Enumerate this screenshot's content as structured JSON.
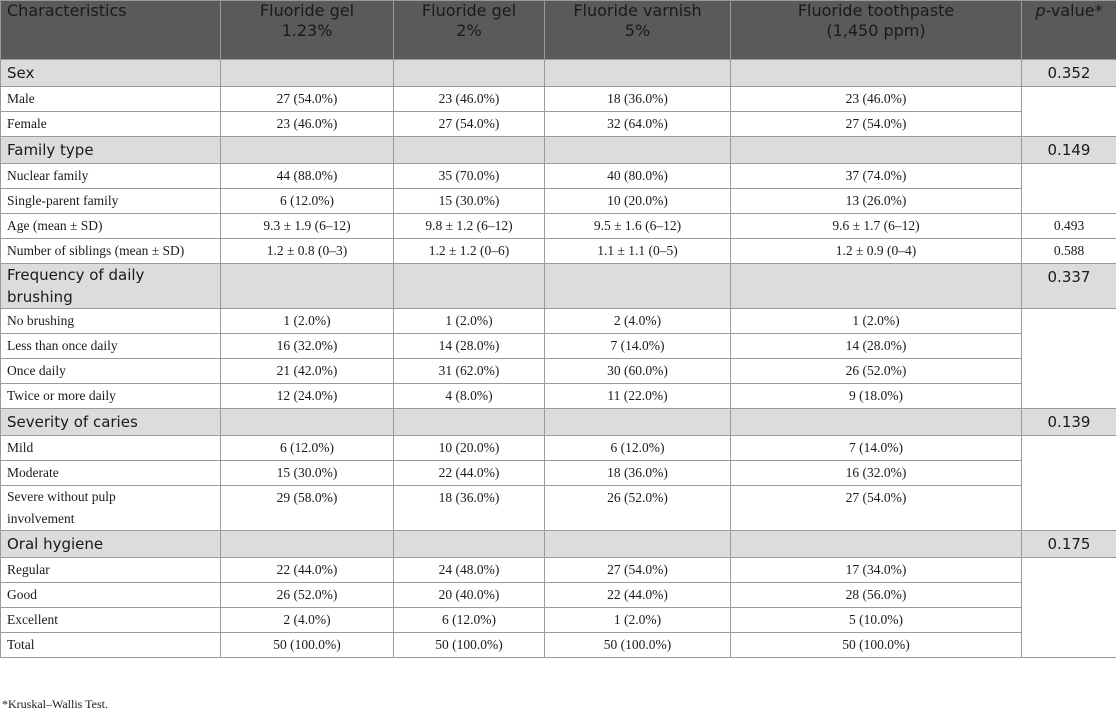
{
  "header": {
    "characteristics": "Characteristics",
    "col1_line1": "Fluoride gel",
    "col1_line2": "1.23%",
    "col2_line1": "Fluoride gel",
    "col2_line2": "2%",
    "col3_line1": "Fluoride varnish",
    "col3_line2": "5%",
    "col4_line1": "Fluoride toothpaste",
    "col4_line2": "(1,450 ppm)",
    "pvalue_italic": "p",
    "pvalue_rest": "-value*"
  },
  "sections": {
    "sex": {
      "label": "Sex",
      "pvalue": "0.352",
      "rows": [
        {
          "label": "Male",
          "v": [
            "27 (54.0%)",
            "23 (46.0%)",
            "18 (36.0%)",
            "23 (46.0%)"
          ]
        },
        {
          "label": "Female",
          "v": [
            "23 (46.0%)",
            "27 (54.0%)",
            "32 (64.0%)",
            "27 (54.0%)"
          ]
        }
      ]
    },
    "family": {
      "label": "Family type",
      "pvalue": "0.149",
      "rows": [
        {
          "label": "Nuclear family",
          "v": [
            "44 (88.0%)",
            "35 (70.0%)",
            "40 (80.0%)",
            "37 (74.0%)"
          ]
        },
        {
          "label": "Single-parent family",
          "v": [
            "6 (12.0%)",
            "15 (30.0%)",
            "10 (20.0%)",
            "13 (26.0%)"
          ]
        }
      ]
    },
    "age": {
      "label": "Age (mean ± SD)",
      "v": [
        "9.3 ± 1.9 (6–12)",
        "9.8 ± 1.2 (6–12)",
        "9.5 ± 1.6 (6–12)",
        "9.6 ± 1.7 (6–12)"
      ],
      "pvalue": "0.493"
    },
    "siblings": {
      "label": "Number of siblings (mean ± SD)",
      "v": [
        "1.2 ± 0.8 (0–3)",
        "1.2 ± 1.2 (0–6)",
        "1.1 ± 1.1 (0–5)",
        "1.2 ± 0.9 (0–4)"
      ],
      "pvalue": "0.588"
    },
    "brushing": {
      "label_line1": "Frequency of daily",
      "label_line2": "brushing",
      "pvalue": "0.337",
      "rows": [
        {
          "label": "No brushing",
          "v": [
            "1 (2.0%)",
            "1 (2.0%)",
            "2 (4.0%)",
            "1 (2.0%)"
          ]
        },
        {
          "label": "Less than once daily",
          "v": [
            "16 (32.0%)",
            "14 (28.0%)",
            "7 (14.0%)",
            "14 (28.0%)"
          ]
        },
        {
          "label": "Once daily",
          "v": [
            "21 (42.0%)",
            "31 (62.0%)",
            "30 (60.0%)",
            "26 (52.0%)"
          ]
        },
        {
          "label": "Twice or more daily",
          "v": [
            "12 (24.0%)",
            "4 (8.0%)",
            "11 (22.0%)",
            "9 (18.0%)"
          ]
        }
      ]
    },
    "caries": {
      "label": "Severity of caries",
      "pvalue": "0.139",
      "rows": [
        {
          "label": "Mild",
          "v": [
            "6 (12.0%)",
            "10 (20.0%)",
            "6 (12.0%)",
            "7 (14.0%)"
          ]
        },
        {
          "label": "Moderate",
          "v": [
            "15 (30.0%)",
            "22 (44.0%)",
            "18 (36.0%)",
            "16 (32.0%)"
          ]
        },
        {
          "label_line1": "Severe without pulp",
          "label_line2": "involvement",
          "v": [
            "29 (58.0%)",
            "18 (36.0%)",
            "26 (52.0%)",
            "27 (54.0%)"
          ]
        }
      ]
    },
    "hygiene": {
      "label": "Oral hygiene",
      "pvalue": "0.175",
      "rows": [
        {
          "label": "Regular",
          "v": [
            "22 (44.0%)",
            "24 (48.0%)",
            "27 (54.0%)",
            "17 (34.0%)"
          ]
        },
        {
          "label": "Good",
          "v": [
            "26 (52.0%)",
            "20 (40.0%)",
            "22 (44.0%)",
            "28 (56.0%)"
          ]
        },
        {
          "label": "Excellent",
          "v": [
            "2 (4.0%)",
            "6 (12.0%)",
            "1 (2.0%)",
            "5 (10.0%)"
          ]
        },
        {
          "label": "Total",
          "v": [
            "50 (100.0%)",
            "50 (100.0%)",
            "50 (100.0%)",
            "50 (100.0%)"
          ]
        }
      ]
    }
  },
  "footnote": "*Kruskal–Wallis Test."
}
